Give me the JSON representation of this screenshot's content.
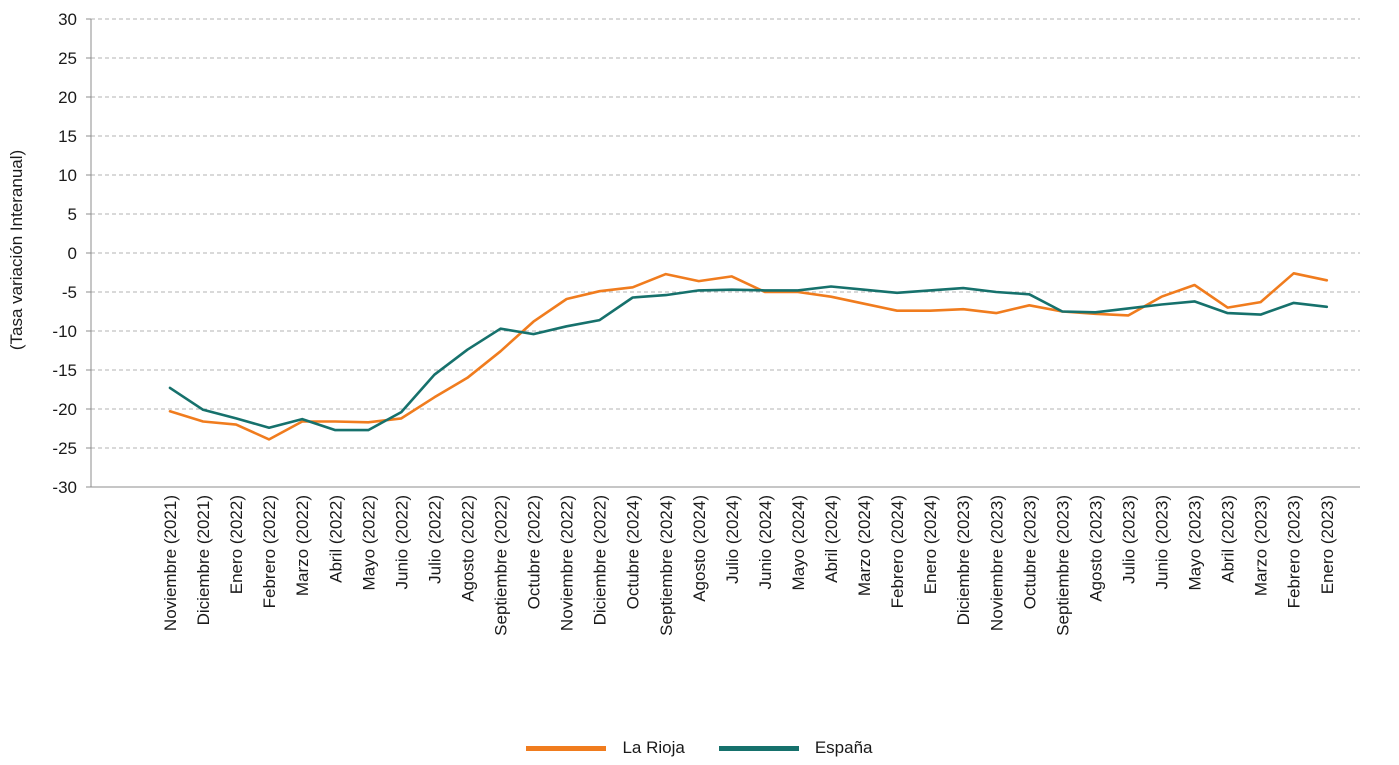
{
  "chart_data": {
    "type": "line",
    "title": "",
    "xlabel": "",
    "ylabel": "(Tasa variación Interanual)",
    "ylim": [
      -30,
      30
    ],
    "yticks": [
      30,
      25,
      20,
      15,
      10,
      5,
      0,
      -5,
      -10,
      -15,
      -20,
      -25,
      -30
    ],
    "grid": true,
    "legend_position": "bottom-center",
    "categories": [
      "Noviembre (2021)",
      "Diciembre (2021)",
      "Enero (2022)",
      "Febrero (2022)",
      "Marzo (2022)",
      "Abril (2022)",
      "Mayo (2022)",
      "Junio (2022)",
      "Julio (2022)",
      "Agosto (2022)",
      "Septiembre (2022)",
      "Octubre (2022)",
      "Noviembre (2022)",
      "Diciembre (2022)",
      "Octubre (2024)",
      "Septiembre (2024)",
      "Agosto (2024)",
      "Julio (2024)",
      "Junio (2024)",
      "Mayo (2024)",
      "Abril (2024)",
      "Marzo (2024)",
      "Febrero (2024)",
      "Enero (2024)",
      "Diciembre (2023)",
      "Noviembre (2023)",
      "Octubre (2023)",
      "Septiembre (2023)",
      "Agosto (2023)",
      "Julio (2023)",
      "Junio (2023)",
      "Mayo (2023)",
      "Abril (2023)",
      "Marzo (2023)",
      "Febrero (2023)",
      "Enero (2023)"
    ],
    "series": [
      {
        "name": "La Rioja",
        "color": "#F07C1E",
        "values": [
          -20.3,
          -21.6,
          -22.0,
          -23.9,
          -21.6,
          -21.6,
          -21.7,
          -21.2,
          -18.5,
          -16.0,
          -12.6,
          -8.8,
          -5.9,
          -4.9,
          -4.4,
          -2.7,
          -3.6,
          -3.0,
          -5.0,
          -5.0,
          -5.6,
          -6.5,
          -7.4,
          -7.4,
          -7.2,
          -7.7,
          -6.7,
          -7.5,
          -7.8,
          -8.0,
          -5.6,
          -4.1,
          -7.0,
          -6.3,
          -2.6,
          -3.5
        ]
      },
      {
        "name": "España",
        "color": "#16716C",
        "values": [
          -17.3,
          -20.1,
          -21.2,
          -22.4,
          -21.3,
          -22.7,
          -22.7,
          -20.4,
          -15.6,
          -12.4,
          -9.7,
          -10.4,
          -9.4,
          -8.6,
          -5.7,
          -5.4,
          -4.8,
          -4.7,
          -4.8,
          -4.8,
          -4.3,
          -4.7,
          -5.1,
          -4.8,
          -4.5,
          -5.0,
          -5.3,
          -7.5,
          -7.6,
          -7.1,
          -6.6,
          -6.2,
          -7.7,
          -7.9,
          -6.4,
          -6.9
        ]
      }
    ]
  }
}
